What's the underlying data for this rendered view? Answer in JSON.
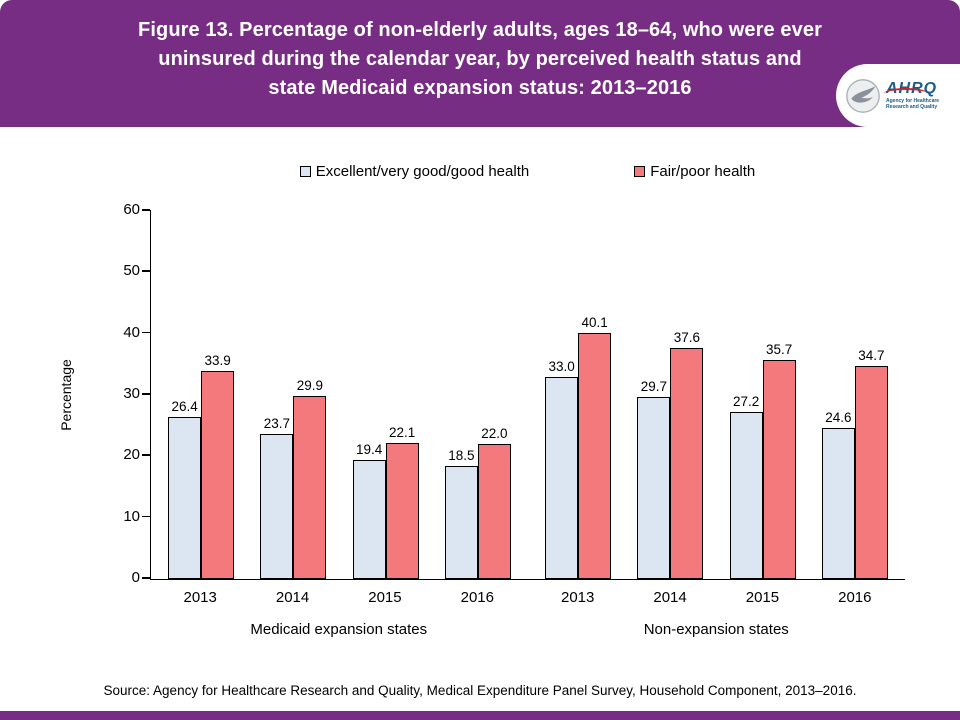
{
  "header": {
    "title": "Figure 13. Percentage of non-elderly adults, ages 18–64, who were ever uninsured during the calendar year, by perceived health status and state Medicaid expansion status: 2013–2016",
    "accent_color": "#772d84",
    "logo": {
      "wordmark": "AHRQ",
      "tagline_line1": "Agency for Healthcare",
      "tagline_line2": "Research and Quality"
    }
  },
  "chart_data": {
    "type": "bar",
    "title": "Figure 13. Percentage of non-elderly adults, ages 18–64, who were ever uninsured during the calendar year, by perceived health status and state Medicaid expansion status: 2013–2016",
    "xlabel": "",
    "ylabel": "Percentage",
    "ylim": [
      0,
      60
    ],
    "yticks": [
      0,
      10,
      20,
      30,
      40,
      50,
      60
    ],
    "grid": false,
    "legend_position": "top-center",
    "series_colors": {
      "Excellent/very good/good health": "#dce6f3",
      "Fair/poor health": "#f4797d"
    },
    "legend": [
      {
        "label": "Excellent/very good/good health",
        "color": "#dce6f3"
      },
      {
        "label": "Fair/poor health",
        "color": "#f4797d"
      }
    ],
    "groups": [
      {
        "label": "Medicaid expansion states",
        "categories": [
          "2013",
          "2014",
          "2015",
          "2016"
        ],
        "series": [
          {
            "name": "Excellent/very good/good health",
            "values": [
              26.4,
              23.7,
              19.4,
              18.5
            ]
          },
          {
            "name": "Fair/poor health",
            "values": [
              33.9,
              29.9,
              22.1,
              22.0
            ]
          }
        ]
      },
      {
        "label": "Non-expansion states",
        "categories": [
          "2013",
          "2014",
          "2015",
          "2016"
        ],
        "series": [
          {
            "name": "Excellent/very good/good health",
            "values": [
              33.0,
              29.7,
              27.2,
              24.6
            ]
          },
          {
            "name": "Fair/poor health",
            "values": [
              40.1,
              37.6,
              35.7,
              34.7
            ]
          }
        ]
      }
    ]
  },
  "footer": {
    "source": "Source: Agency for Healthcare Research and Quality, Medical Expenditure Panel Survey, Household Component, 2013–2016."
  }
}
